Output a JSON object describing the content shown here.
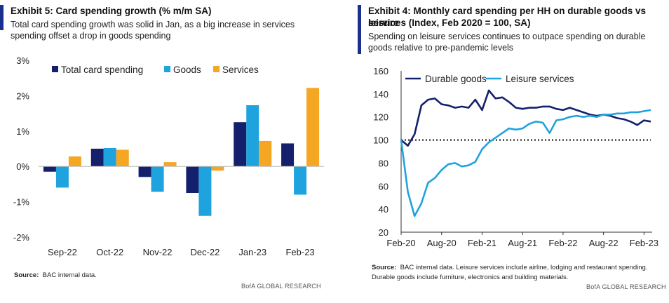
{
  "left": {
    "title": "Exhibit 5: Card spending growth (% m/m SA)",
    "subtitle_line1": "Total card spending growth was solid in Jan, as a big increase in services",
    "subtitle_line2": "spending offset a drop in goods spending",
    "source_label": "Source:",
    "source_text": "BAC internal data.",
    "footer": "BofA GLOBAL RESEARCH"
  },
  "right": {
    "title_line1": "Exhibit 4: Monthly card spending per HH on durable goods vs leisure",
    "title_line2": "services (Index, Feb 2020 = 100, SA)",
    "subtitle_line1": "Spending on leisure services continues to outpace spending on durable",
    "subtitle_line2": "goods relative to pre-pandemic levels",
    "source_label": "Source:",
    "source_line1": "BAC internal data. Leisure services include airline, lodging and restaurant spending.",
    "source_line2": "Durable goods include furniture, electronics and building materials.",
    "footer": "BofA GLOBAL RESEARCH"
  },
  "chart_data": [
    {
      "type": "bar",
      "categories": [
        "Sep-22",
        "Oct-22",
        "Nov-22",
        "Dec-22",
        "Jan-23",
        "Feb-23"
      ],
      "series": [
        {
          "name": "Total card spending",
          "color": "#14206b",
          "values": [
            -0.15,
            0.5,
            -0.3,
            -0.75,
            1.25,
            0.65
          ]
        },
        {
          "name": "Goods",
          "color": "#1fa3de",
          "values": [
            -0.6,
            0.52,
            -0.72,
            -1.4,
            1.73,
            -0.8
          ]
        },
        {
          "name": "Services",
          "color": "#f5a623",
          "values": [
            0.28,
            0.47,
            0.12,
            -0.12,
            0.72,
            2.22
          ]
        }
      ],
      "ylim": [
        -2,
        3
      ],
      "yticks": [
        "3%",
        "2%",
        "1%",
        "0%",
        "-1%",
        "-2%"
      ],
      "legend": "top",
      "grid": false
    },
    {
      "type": "line",
      "x_ticks": [
        "Feb-20",
        "Aug-20",
        "Feb-21",
        "Aug-21",
        "Feb-22",
        "Aug-22",
        "Feb-23"
      ],
      "ylim": [
        20,
        160
      ],
      "yticks": [
        "160",
        "140",
        "120",
        "100",
        "80",
        "60",
        "40",
        "20"
      ],
      "reference_line": 100,
      "legend": "top-left",
      "grid": false,
      "series": [
        {
          "name": "Durable goods",
          "color": "#14206b",
          "values": [
            100,
            95,
            105,
            130,
            135,
            136,
            131,
            130,
            128,
            129,
            128,
            135,
            126,
            143,
            136,
            137,
            133,
            128,
            127,
            128,
            128,
            129,
            129,
            127,
            126,
            128,
            126,
            124,
            122,
            121,
            122,
            121,
            119,
            118,
            116,
            113,
            117,
            116
          ]
        },
        {
          "name": "Leisure services",
          "color": "#1fa3de",
          "values": [
            100,
            55,
            34,
            45,
            63,
            67,
            74,
            79,
            80,
            77,
            78,
            81,
            92,
            98,
            102,
            106,
            110,
            109,
            110,
            114,
            116,
            115,
            106,
            117,
            118,
            120,
            121,
            120,
            121,
            120,
            122,
            122,
            123,
            123,
            124,
            124,
            125,
            126
          ]
        }
      ]
    }
  ]
}
